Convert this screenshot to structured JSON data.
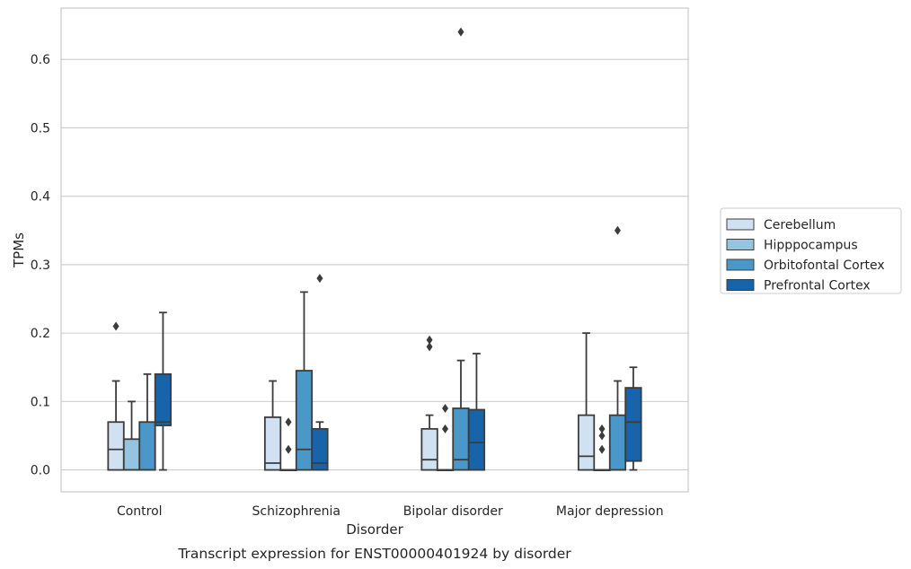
{
  "caption": "Transcript expression for ENST00000401924 by disorder",
  "chart_data": {
    "type": "box",
    "xlabel": "Disorder",
    "ylabel": "TPMs",
    "ylim": [
      -0.032,
      0.675
    ],
    "yticks": [
      0.0,
      0.1,
      0.2,
      0.3,
      0.4,
      0.5,
      0.6
    ],
    "ytick_labels": [
      "0.0",
      "0.1",
      "0.2",
      "0.3",
      "0.4",
      "0.5",
      "0.6"
    ],
    "grid": true,
    "legend_position": "right",
    "categories": [
      "Control",
      "Schizophrenia",
      "Bipolar disorder",
      "Major depression"
    ],
    "series": [
      {
        "name": "Cerebellum",
        "color": "#d0e1f2",
        "boxes": [
          {
            "whislo": 0.0,
            "q1": 0.0,
            "med": 0.03,
            "q3": 0.07,
            "whishi": 0.13,
            "fliers": [
              0.21
            ]
          },
          {
            "whislo": 0.0,
            "q1": 0.0,
            "med": 0.01,
            "q3": 0.077,
            "whishi": 0.13,
            "fliers": []
          },
          {
            "whislo": 0.0,
            "q1": 0.0,
            "med": 0.015,
            "q3": 0.06,
            "whishi": 0.08,
            "fliers": [
              0.18,
              0.19
            ]
          },
          {
            "whislo": 0.0,
            "q1": 0.0,
            "med": 0.02,
            "q3": 0.08,
            "whishi": 0.2,
            "fliers": []
          }
        ]
      },
      {
        "name": "Hipppocampus",
        "color": "#94c4df",
        "boxes": [
          {
            "whislo": 0.0,
            "q1": 0.0,
            "med": 0.0,
            "q3": 0.045,
            "whishi": 0.1,
            "fliers": []
          },
          {
            "whislo": 0.0,
            "q1": 0.0,
            "med": 0.0,
            "q3": 0.0,
            "whishi": 0.0,
            "fliers": [
              0.03,
              0.07
            ]
          },
          {
            "whislo": 0.0,
            "q1": 0.0,
            "med": 0.0,
            "q3": 0.0,
            "whishi": 0.0,
            "fliers": [
              0.06,
              0.09
            ]
          },
          {
            "whislo": 0.0,
            "q1": 0.0,
            "med": 0.0,
            "q3": 0.0,
            "whishi": 0.0,
            "fliers": [
              0.03,
              0.05,
              0.06
            ]
          }
        ]
      },
      {
        "name": "Orbitofontal Cortex",
        "color": "#4a98c9",
        "boxes": [
          {
            "whislo": 0.0,
            "q1": 0.0,
            "med": 0.0,
            "q3": 0.07,
            "whishi": 0.14,
            "fliers": []
          },
          {
            "whislo": 0.0,
            "q1": 0.0,
            "med": 0.03,
            "q3": 0.145,
            "whishi": 0.26,
            "fliers": []
          },
          {
            "whislo": 0.0,
            "q1": 0.0,
            "med": 0.015,
            "q3": 0.09,
            "whishi": 0.16,
            "fliers": [
              0.64
            ]
          },
          {
            "whislo": 0.0,
            "q1": 0.0,
            "med": 0.0,
            "q3": 0.08,
            "whishi": 0.13,
            "fliers": [
              0.35
            ]
          }
        ]
      },
      {
        "name": "Prefrontal Cortex",
        "color": "#1764ab",
        "boxes": [
          {
            "whislo": 0.0,
            "q1": 0.065,
            "med": 0.07,
            "q3": 0.14,
            "whishi": 0.23,
            "fliers": []
          },
          {
            "whislo": 0.0,
            "q1": 0.0,
            "med": 0.01,
            "q3": 0.06,
            "whishi": 0.07,
            "fliers": [
              0.28
            ]
          },
          {
            "whislo": 0.0,
            "q1": 0.0,
            "med": 0.04,
            "q3": 0.088,
            "whishi": 0.17,
            "fliers": []
          },
          {
            "whislo": 0.0,
            "q1": 0.013,
            "med": 0.07,
            "q3": 0.12,
            "whishi": 0.15,
            "fliers": []
          }
        ]
      }
    ]
  }
}
